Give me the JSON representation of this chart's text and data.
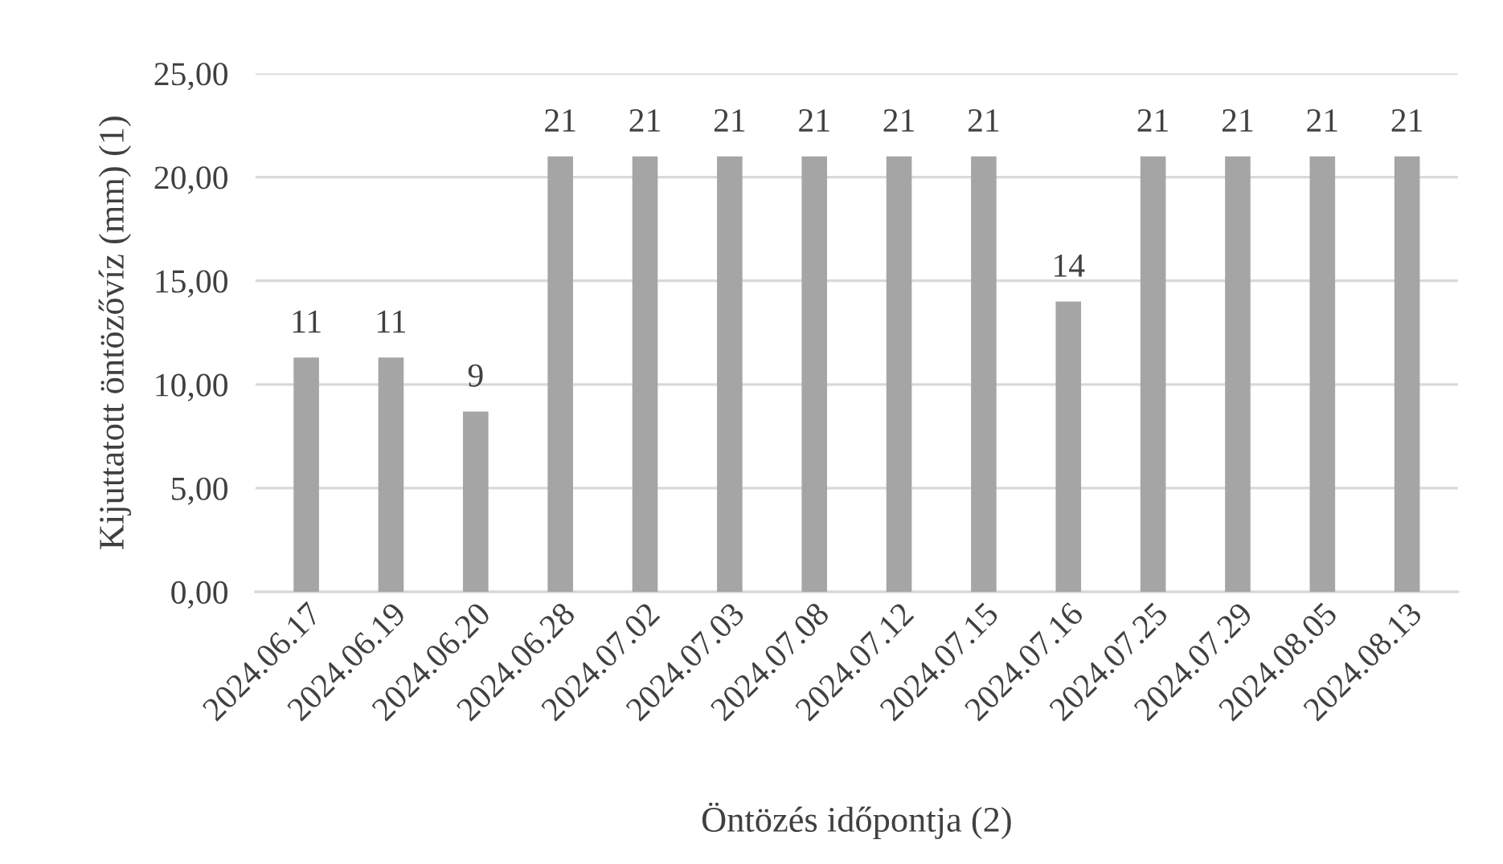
{
  "chart_data": {
    "type": "bar",
    "xlabel": "Öntözés időpontja (2)",
    "ylabel": "Kijuttatott öntözővíz (mm) (1)",
    "categories": [
      "2024.06.17",
      "2024.06.19",
      "2024.06.20",
      "2024.06.28",
      "2024.07.02",
      "2024.07.03",
      "2024.07.08",
      "2024.07.12",
      "2024.07.15",
      "2024.07.16",
      "2024.07.25",
      "2024.07.29",
      "2024.08.05",
      "2024.08.13"
    ],
    "values": [
      11.3,
      11.3,
      8.7,
      21,
      21,
      21,
      21,
      21,
      21,
      14,
      21,
      21,
      21,
      21
    ],
    "value_labels": [
      "11",
      "11",
      "9",
      "21",
      "21",
      "21",
      "21",
      "21",
      "21",
      "14",
      "21",
      "21",
      "21",
      "21"
    ],
    "color": "#a5a5a5",
    "ylim": [
      0,
      25
    ],
    "yticks": [
      {
        "value": 0,
        "label": "0,00"
      },
      {
        "value": 5,
        "label": "5,00"
      },
      {
        "value": 10,
        "label": "10,00"
      },
      {
        "value": 15,
        "label": "15,00"
      },
      {
        "value": 20,
        "label": "20,00"
      },
      {
        "value": 25,
        "label": "25,00"
      }
    ],
    "grid": "y",
    "legend": false
  }
}
